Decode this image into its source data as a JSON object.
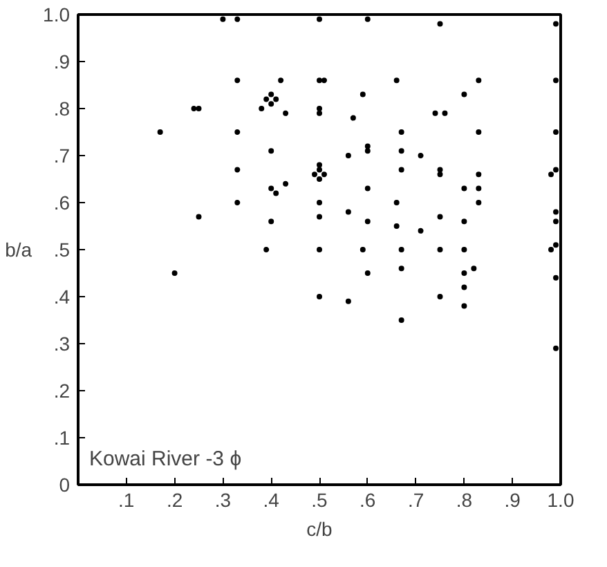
{
  "chart_data": {
    "type": "scatter",
    "xlabel": "c/b",
    "ylabel": "b/a",
    "annotations": [
      "Kowai River -3 ϕ"
    ],
    "marker": "circle",
    "grid": false,
    "xlim": [
      0,
      1.0
    ],
    "ylim": [
      0,
      1.0
    ],
    "xticks": [
      {
        "value": 0.1,
        "label": ".1"
      },
      {
        "value": 0.2,
        "label": ".2"
      },
      {
        "value": 0.3,
        "label": ".3"
      },
      {
        "value": 0.4,
        "label": ".4"
      },
      {
        "value": 0.5,
        "label": ".5"
      },
      {
        "value": 0.6,
        "label": ".6"
      },
      {
        "value": 0.7,
        "label": ".7"
      },
      {
        "value": 0.8,
        "label": ".8"
      },
      {
        "value": 0.9,
        "label": ".9"
      },
      {
        "value": 1.0,
        "label": "1.0"
      }
    ],
    "yticks": [
      0,
      {
        "value": 0.1,
        "label": ".1"
      },
      {
        "value": 0.2,
        "label": ".2"
      },
      {
        "value": 0.3,
        "label": ".3"
      },
      {
        "value": 0.4,
        "label": ".4"
      },
      {
        "value": 0.5,
        "label": ".5"
      },
      {
        "value": 0.6,
        "label": ".6"
      },
      {
        "value": 0.7,
        "label": ".7"
      },
      {
        "value": 0.8,
        "label": ".8"
      },
      {
        "value": 0.9,
        "label": ".9"
      },
      {
        "value": 1.0,
        "label": "1.0"
      }
    ],
    "series": [
      {
        "color": "#000000",
        "x": [
          0.3,
          0.33,
          0.5,
          0.6,
          0.75,
          0.99,
          0.17,
          0.24,
          0.25,
          0.33,
          0.33,
          0.33,
          0.33,
          0.25,
          0.4,
          0.39,
          0.41,
          0.4,
          0.38,
          0.42,
          0.43,
          0.4,
          0.4,
          0.41,
          0.43,
          0.4,
          0.5,
          0.51,
          0.66,
          0.83,
          0.99,
          0.59,
          0.8,
          0.5,
          0.5,
          0.74,
          0.76,
          0.57,
          0.67,
          0.83,
          0.99,
          0.6,
          0.6,
          0.67,
          0.56,
          0.71,
          0.5,
          0.49,
          0.51,
          0.5,
          0.5,
          0.67,
          0.75,
          0.75,
          0.83,
          0.99,
          0.98,
          0.6,
          0.8,
          0.83,
          0.5,
          0.66,
          0.83,
          0.56,
          0.5,
          0.75,
          0.99,
          0.6,
          0.66,
          0.71,
          0.8,
          0.99,
          0.99,
          0.5,
          0.59,
          0.67,
          0.75,
          0.8,
          0.98,
          0.39,
          0.2,
          0.6,
          0.67,
          0.8,
          0.82,
          0.99,
          0.5,
          0.75,
          0.8,
          0.8,
          0.56,
          0.67,
          0.99
        ],
        "values": [
          0.99,
          0.99,
          0.99,
          0.99,
          0.98,
          0.98,
          0.75,
          0.8,
          0.8,
          0.86,
          0.75,
          0.67,
          0.6,
          0.57,
          0.83,
          0.82,
          0.82,
          0.81,
          0.8,
          0.86,
          0.79,
          0.71,
          0.63,
          0.62,
          0.64,
          0.56,
          0.86,
          0.86,
          0.86,
          0.86,
          0.86,
          0.83,
          0.83,
          0.8,
          0.79,
          0.79,
          0.79,
          0.78,
          0.75,
          0.75,
          0.75,
          0.71,
          0.72,
          0.71,
          0.7,
          0.7,
          0.67,
          0.66,
          0.66,
          0.65,
          0.68,
          0.67,
          0.67,
          0.66,
          0.66,
          0.67,
          0.66,
          0.63,
          0.63,
          0.63,
          0.6,
          0.6,
          0.6,
          0.58,
          0.57,
          0.57,
          0.58,
          0.56,
          0.55,
          0.54,
          0.56,
          0.56,
          0.51,
          0.5,
          0.5,
          0.5,
          0.5,
          0.5,
          0.5,
          0.5,
          0.45,
          0.45,
          0.46,
          0.45,
          0.46,
          0.44,
          0.4,
          0.4,
          0.42,
          0.38,
          0.39,
          0.35,
          0.29
        ]
      }
    ]
  }
}
